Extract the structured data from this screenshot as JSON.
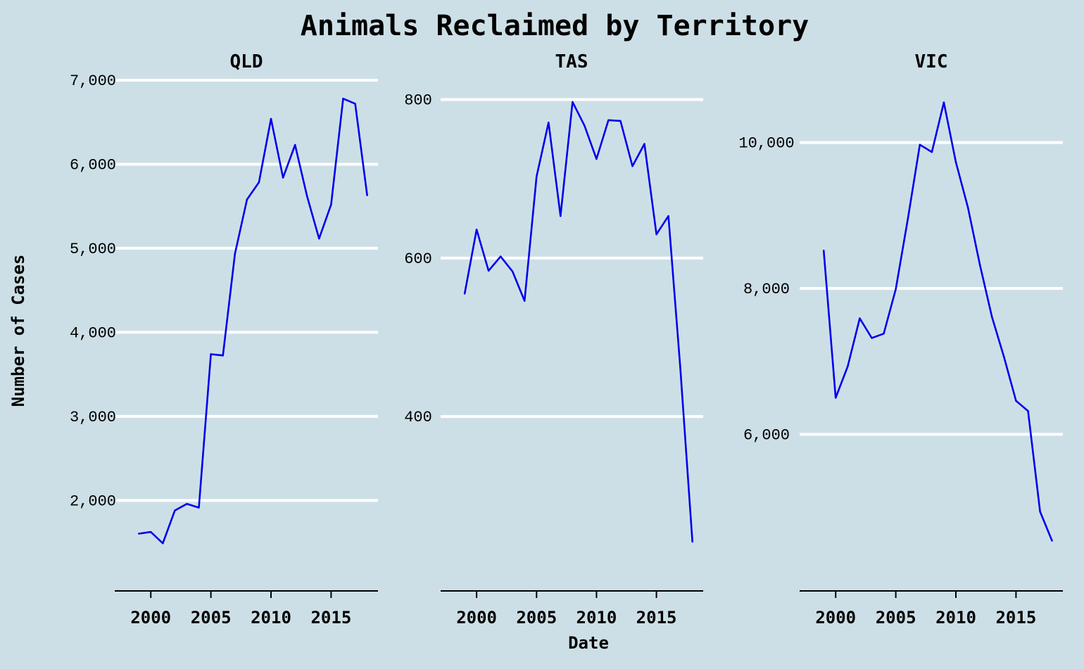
{
  "chart_data": {
    "type": "line",
    "title": "Animals Reclaimed by Territory",
    "xlabel": "Date",
    "ylabel": "Number of Cases",
    "line_color": "#0000ee",
    "grid_color": "#ffffff",
    "background": "#cddfe6",
    "grid": true,
    "legend": "none",
    "x": [
      1999,
      2000,
      2001,
      2002,
      2003,
      2004,
      2005,
      2006,
      2007,
      2008,
      2009,
      2010,
      2011,
      2012,
      2013,
      2014,
      2015,
      2016,
      2017,
      2018
    ],
    "xlim": [
      1997,
      2018.9
    ],
    "xticks": [
      2000,
      2005,
      2010,
      2015
    ],
    "panels": [
      {
        "name": "QLD",
        "ylim": [
          1225,
          7100
        ],
        "yticks": [
          2000,
          3000,
          4000,
          5000,
          6000,
          7000
        ],
        "ytick_labels": [
          "2,000",
          "3,000",
          "4,000",
          "5,000",
          "6,000",
          "7,000"
        ],
        "values": [
          1605,
          1625,
          1490,
          1880,
          1960,
          1915,
          3740,
          3725,
          4935,
          5580,
          5785,
          6540,
          5840,
          6230,
          5620,
          5115,
          5520,
          6780,
          6720,
          5630
        ]
      },
      {
        "name": "TAS",
        "ylim": [
          212,
          812
        ],
        "yticks": [
          400,
          600,
          800
        ],
        "ytick_labels": [
          "400",
          "600",
          "800"
        ],
        "values": [
          555,
          636,
          584,
          602,
          583,
          546,
          703,
          771,
          653,
          797,
          767,
          725,
          774,
          773,
          716,
          744,
          630,
          653,
          460,
          242
        ]
      },
      {
        "name": "VIC",
        "ylim": [
          4200,
          10700
        ],
        "yticks": [
          6000,
          8000,
          10000
        ],
        "ytick_labels": [
          "6,000",
          "8,000",
          "10,000"
        ],
        "values": [
          8520,
          6500,
          6930,
          7590,
          7320,
          7380,
          7990,
          8950,
          9970,
          9870,
          10550,
          9730,
          9110,
          8320,
          7610,
          7060,
          6460,
          6320,
          4940,
          4540
        ]
      }
    ]
  }
}
